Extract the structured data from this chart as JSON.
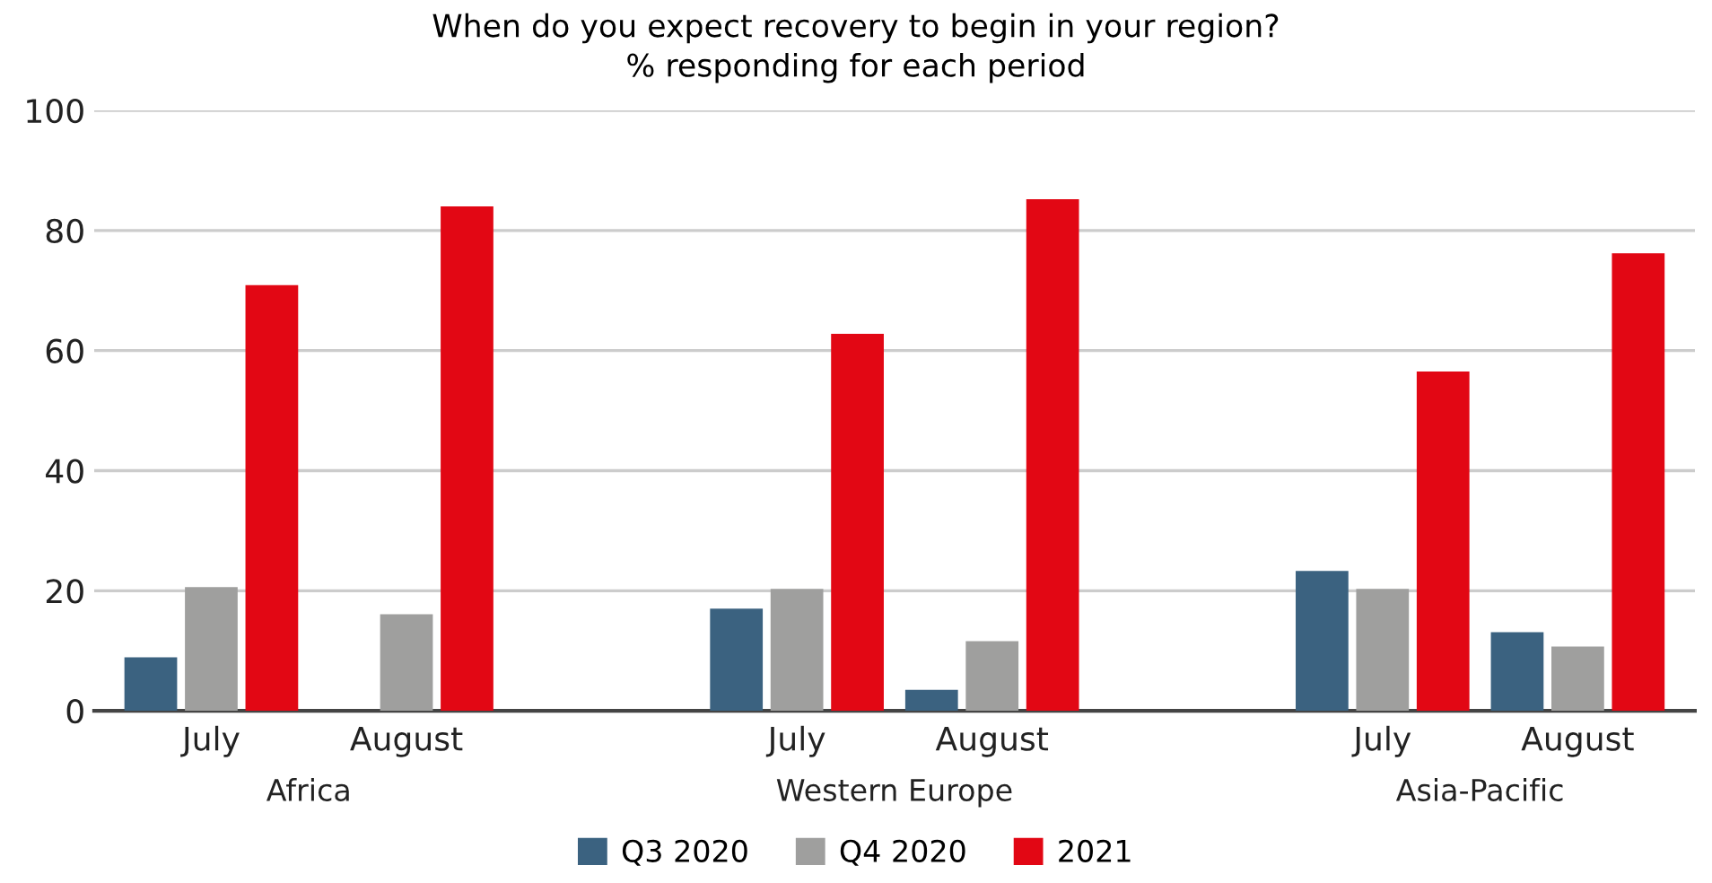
{
  "chart_data": {
    "type": "bar",
    "title": "When do you expect recovery to begin in your region?\n% responding for each period",
    "categories": [
      "July",
      "August",
      "July",
      "August",
      "July",
      "August"
    ],
    "series": [
      {
        "name": "Q3 2020",
        "color": "#3b6280",
        "values": [
          8.9,
          null,
          17.0,
          3.5,
          23.3,
          13.1
        ]
      },
      {
        "name": "Q4 2020",
        "color": "#9f9f9e",
        "values": [
          20.6,
          16.1,
          20.3,
          11.6,
          20.3,
          10.7
        ]
      },
      {
        "name": "2021",
        "color": "#e20714",
        "values": [
          70.9,
          84.0,
          62.8,
          85.2,
          56.5,
          76.2
        ]
      }
    ],
    "annotations": [
      "Africa",
      "Western Europe",
      "Asia-Pacific"
    ],
    "ylim": [
      0,
      100
    ],
    "yticks": [
      0,
      20,
      40,
      60,
      80,
      100
    ],
    "grid": "y",
    "legend": "bottom"
  }
}
